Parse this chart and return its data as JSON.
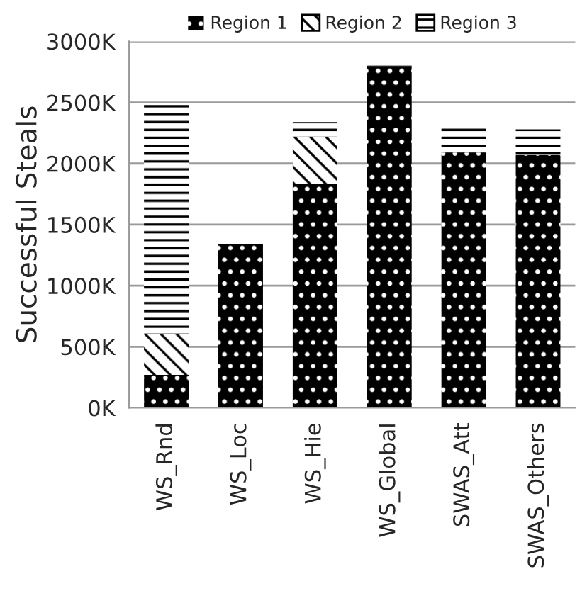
{
  "chart_data": {
    "type": "bar",
    "stacked": true,
    "ylabel": "Successful Steals",
    "categories": [
      "WS_Rnd",
      "WS_Loc",
      "WS_Hie",
      "WS_Global",
      "SWAS_Att",
      "SWAS_Others"
    ],
    "series": [
      {
        "name": "Region 1",
        "color": "#000000",
        "values": [
          270,
          1340,
          1830,
          2790,
          2090,
          2070
        ]
      },
      {
        "name": "Region 2",
        "color": "#ffffff",
        "values": [
          330,
          0,
          390,
          0,
          0,
          0
        ]
      },
      {
        "name": "Region 3",
        "color": "#ffffff",
        "values": [
          1880,
          0,
          120,
          40,
          210,
          210
        ]
      }
    ],
    "ylim": [
      0,
      3000
    ],
    "yticks": [
      {
        "value": 0,
        "label": "0K"
      },
      {
        "value": 500,
        "label": "500K"
      },
      {
        "value": 1000,
        "label": "1000K"
      },
      {
        "value": 1500,
        "label": "1500K"
      },
      {
        "value": 2000,
        "label": "2000K"
      },
      {
        "value": 2500,
        "label": "2500K"
      },
      {
        "value": 3000,
        "label": "3000K"
      }
    ],
    "grid": "y",
    "legend": "top"
  }
}
